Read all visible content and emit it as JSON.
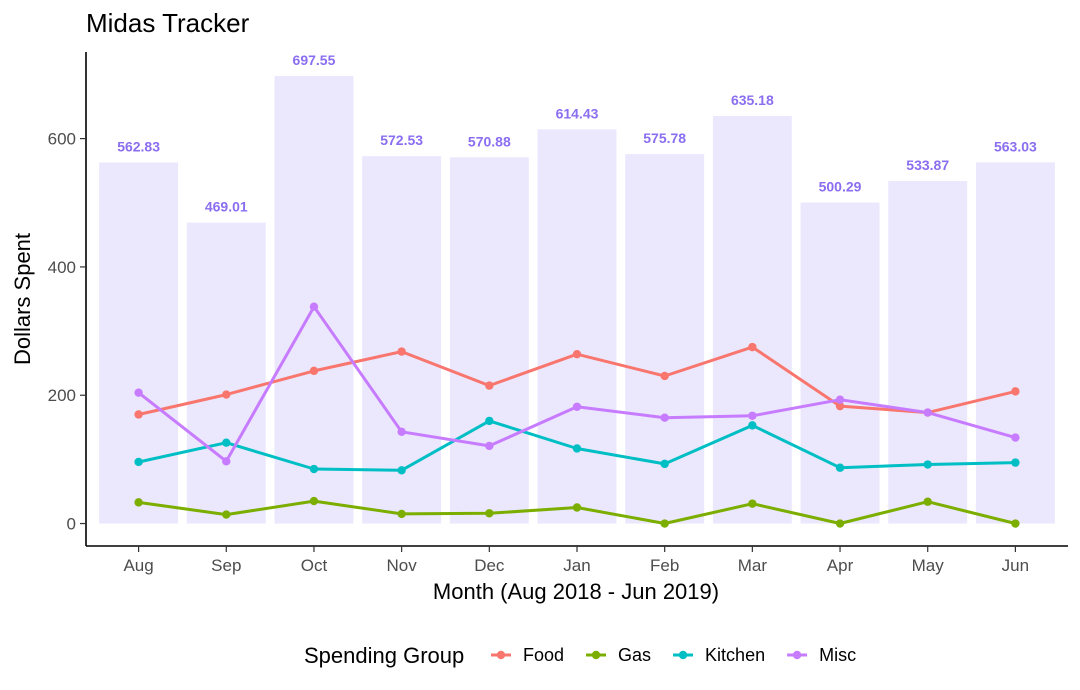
{
  "chart_data": {
    "type": "bar+line",
    "title": "Midas Tracker",
    "xlabel": "Month (Aug 2018 - Jun 2019)",
    "ylabel": "Dollars Spent",
    "ylim": [
      -35,
      735
    ],
    "yticks": [
      0,
      200,
      400,
      600
    ],
    "grid": false,
    "legend_position": "bottom",
    "legend_title": "Spending Group",
    "categories": [
      "Aug",
      "Sep",
      "Oct",
      "Nov",
      "Dec",
      "Jan",
      "Feb",
      "Mar",
      "Apr",
      "May",
      "Jun"
    ],
    "bars": {
      "color": "#ebe7fd",
      "label_color": "#8b6ef0",
      "values": [
        562.83,
        469.01,
        697.55,
        572.53,
        570.88,
        614.43,
        575.78,
        635.18,
        500.29,
        533.87,
        563.03
      ],
      "labels": [
        "562.83",
        "469.01",
        "697.55",
        "572.53",
        "570.88",
        "614.43",
        "575.78",
        "635.18",
        "500.29",
        "533.87",
        "563.03"
      ]
    },
    "series": [
      {
        "name": "Food",
        "color": "#f8766d",
        "values": [
          170,
          201,
          238,
          268,
          215,
          264,
          230,
          275,
          183,
          173,
          206
        ]
      },
      {
        "name": "Gas",
        "color": "#7cae00",
        "values": [
          33,
          14,
          35,
          15,
          16,
          25,
          0,
          31,
          0,
          34,
          0
        ]
      },
      {
        "name": "Kitchen",
        "color": "#00bfc4",
        "values": [
          96,
          126,
          85,
          83,
          160,
          117,
          93,
          153,
          87,
          92,
          95
        ]
      },
      {
        "name": "Misc",
        "color": "#c77cff",
        "values": [
          204,
          97,
          338,
          143,
          121,
          182,
          165,
          168,
          193,
          173,
          134
        ]
      }
    ]
  }
}
